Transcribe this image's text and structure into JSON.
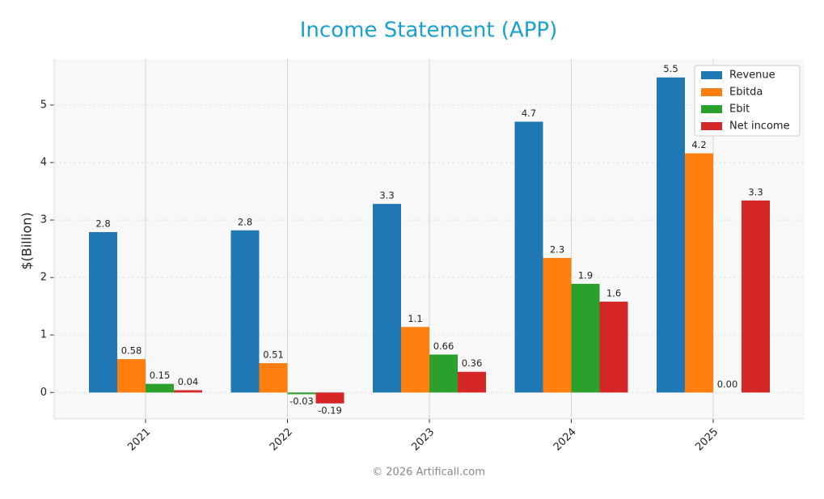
{
  "chart_data": {
    "type": "bar",
    "title": "Income Statement (APP)",
    "y_label": "$(Billion)",
    "footer": "© 2026 Artificall.com",
    "categories": [
      "2021",
      "2022",
      "2023",
      "2024",
      "2025"
    ],
    "series": [
      {
        "name": "Revenue",
        "color": "#1f77b4",
        "values": [
          2.79,
          2.82,
          3.28,
          4.71,
          5.48
        ],
        "value_labels": [
          "2.8",
          "2.8",
          "3.3",
          "4.7",
          "5.5"
        ]
      },
      {
        "name": "Ebitda",
        "color": "#ff7f0e",
        "values": [
          0.58,
          0.51,
          1.14,
          2.34,
          4.16
        ],
        "value_labels": [
          "0.58",
          "0.51",
          "1.1",
          "2.3",
          "4.2"
        ]
      },
      {
        "name": "Ebit",
        "color": "#2ca02c",
        "values": [
          0.15,
          -0.03,
          0.66,
          1.89,
          0
        ],
        "value_labels": [
          "0.15",
          "-0.03",
          "0.66",
          "1.9",
          "0.00"
        ]
      },
      {
        "name": "Net income",
        "color": "#d62728",
        "values": [
          0.04,
          -0.19,
          0.36,
          1.58,
          3.34
        ],
        "value_labels": [
          "0.04",
          "-0.19",
          "0.36",
          "1.6",
          "3.3"
        ]
      }
    ],
    "ylim": [
      -0.46,
      5.8
    ],
    "yticks": [
      0,
      1,
      2,
      3,
      4,
      5
    ],
    "grid": true,
    "legend": "upper right"
  }
}
